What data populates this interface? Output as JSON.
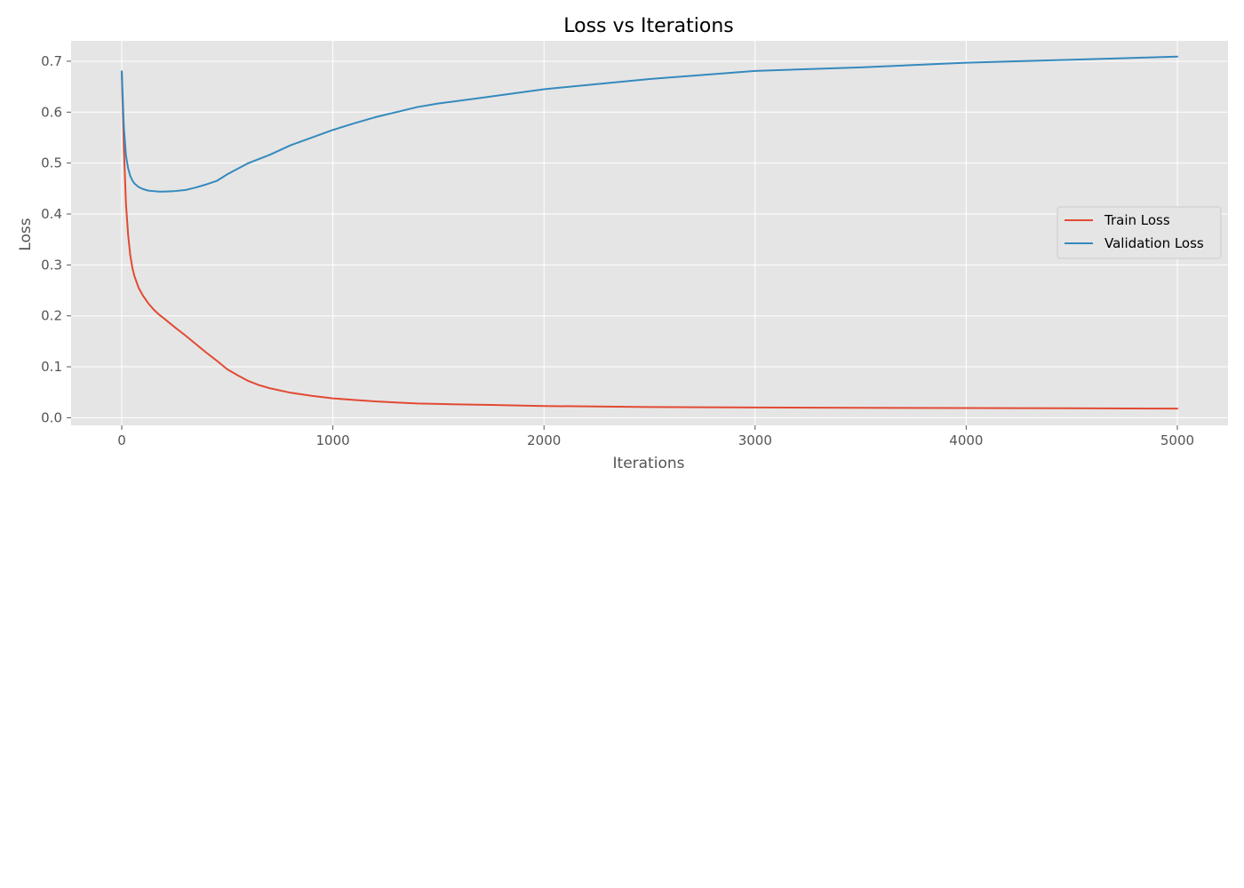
{
  "chart_data": {
    "type": "line",
    "title": "Loss vs Iterations",
    "xlabel": "Iterations",
    "ylabel": "Loss",
    "xlim": [
      -240,
      5240
    ],
    "ylim": [
      -0.015,
      0.74
    ],
    "xticks": [
      0,
      1000,
      2000,
      3000,
      4000,
      5000
    ],
    "xtick_labels": [
      "0",
      "1000",
      "2000",
      "3000",
      "4000",
      "5000"
    ],
    "yticks": [
      0.0,
      0.1,
      0.2,
      0.3,
      0.4,
      0.5,
      0.6,
      0.7
    ],
    "ytick_labels": [
      "0.0",
      "0.1",
      "0.2",
      "0.3",
      "0.4",
      "0.5",
      "0.6",
      "0.7"
    ],
    "grid": true,
    "legend_position": "center-right",
    "colors": {
      "plot_background": "#e5e5e5",
      "grid": "#ffffff",
      "train": "#e24a33",
      "validation": "#348abd"
    },
    "series": [
      {
        "name": "Train Loss",
        "color": "#e24a33",
        "x": [
          0,
          10,
          20,
          30,
          40,
          50,
          60,
          80,
          100,
          125,
          150,
          175,
          200,
          250,
          300,
          350,
          400,
          450,
          500,
          550,
          600,
          650,
          700,
          800,
          900,
          1000,
          1100,
          1200,
          1300,
          1400,
          1500,
          1750,
          2000,
          2500,
          3000,
          3500,
          4000,
          4500,
          5000
        ],
        "y": [
          0.68,
          0.53,
          0.42,
          0.36,
          0.32,
          0.295,
          0.278,
          0.255,
          0.24,
          0.225,
          0.213,
          0.203,
          0.195,
          0.178,
          0.162,
          0.145,
          0.128,
          0.112,
          0.095,
          0.083,
          0.072,
          0.064,
          0.058,
          0.049,
          0.043,
          0.038,
          0.035,
          0.032,
          0.03,
          0.028,
          0.027,
          0.025,
          0.023,
          0.021,
          0.02,
          0.0195,
          0.019,
          0.0185,
          0.018
        ]
      },
      {
        "name": "Validation Loss",
        "color": "#348abd",
        "x": [
          0,
          10,
          20,
          30,
          40,
          50,
          60,
          80,
          100,
          125,
          150,
          175,
          200,
          250,
          300,
          350,
          400,
          450,
          500,
          600,
          700,
          800,
          900,
          1000,
          1100,
          1200,
          1300,
          1400,
          1500,
          1700,
          2000,
          2500,
          3000,
          3500,
          4000,
          4500,
          5000
        ],
        "y": [
          0.68,
          0.57,
          0.515,
          0.49,
          0.475,
          0.466,
          0.46,
          0.453,
          0.449,
          0.446,
          0.445,
          0.444,
          0.444,
          0.445,
          0.447,
          0.452,
          0.458,
          0.465,
          0.478,
          0.5,
          0.516,
          0.535,
          0.55,
          0.565,
          0.578,
          0.59,
          0.6,
          0.61,
          0.617,
          0.628,
          0.645,
          0.665,
          0.681,
          0.688,
          0.697,
          0.703,
          0.709
        ]
      }
    ]
  }
}
